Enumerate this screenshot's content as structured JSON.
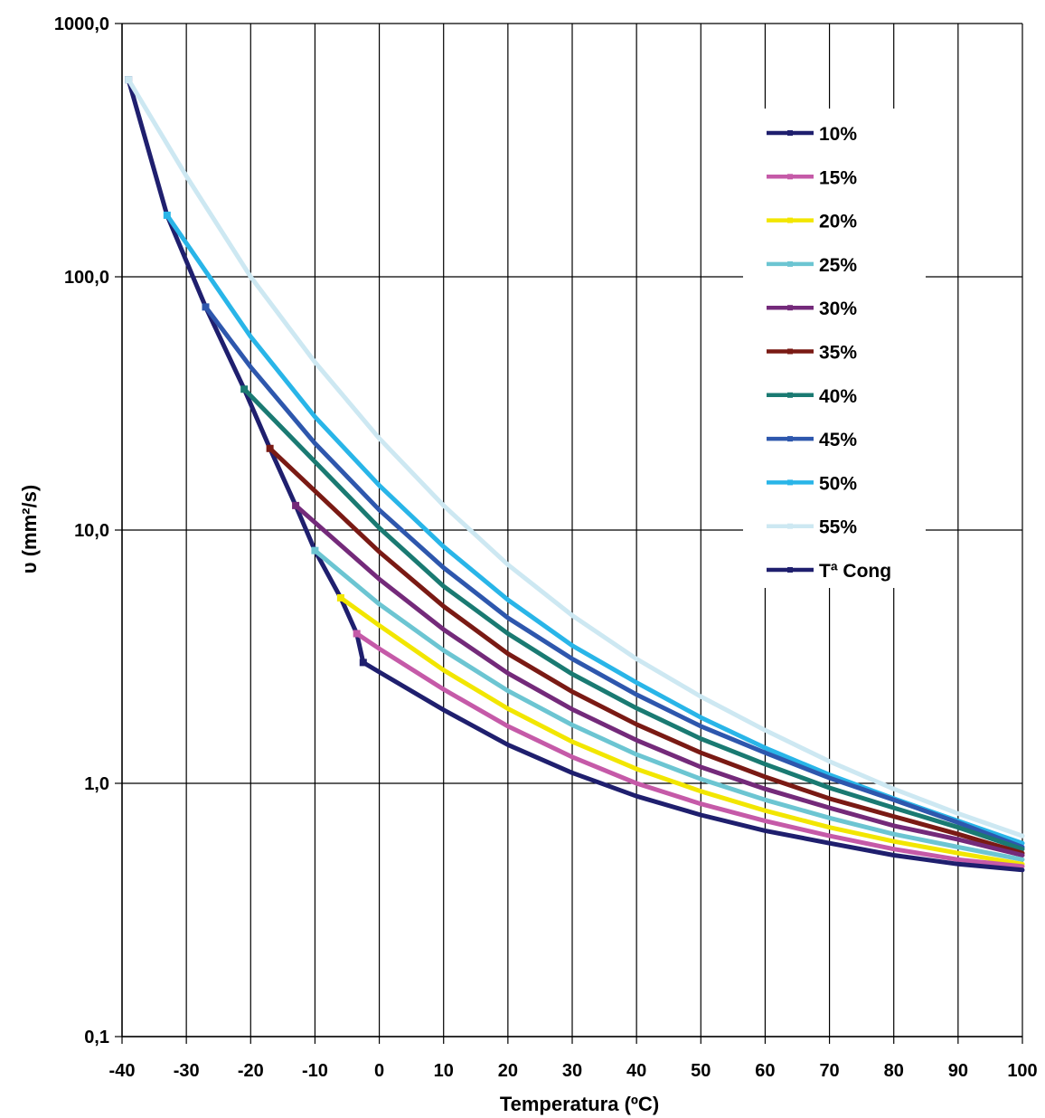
{
  "chart_data": {
    "type": "line",
    "title": "",
    "xlabel": "Temperatura (ºC)",
    "ylabel": "υ (mm²/s)",
    "xlim": [
      -40,
      100
    ],
    "ylim": [
      0.1,
      1000
    ],
    "yscale": "log",
    "grid": true,
    "legend_position": "right",
    "x_ticks": [
      "-40",
      "-30",
      "-20",
      "-10",
      "0",
      "10",
      "20",
      "30",
      "40",
      "50",
      "60",
      "70",
      "80",
      "90",
      "100"
    ],
    "y_ticks": [
      "0,1",
      "1,0",
      "10,0",
      "100,0",
      "1000,0"
    ],
    "series": [
      {
        "name": "10%",
        "color": "#1f1f6e",
        "x": [
          -2.5,
          0,
          10,
          20,
          30,
          40,
          50,
          60,
          70,
          80,
          90,
          100
        ],
        "y": [
          3.0,
          2.75,
          1.95,
          1.42,
          1.1,
          0.89,
          0.75,
          0.65,
          0.58,
          0.52,
          0.48,
          0.455
        ]
      },
      {
        "name": "15%",
        "color": "#c55aa8",
        "x": [
          -3.5,
          0,
          10,
          20,
          30,
          40,
          50,
          60,
          70,
          80,
          90,
          100
        ],
        "y": [
          3.9,
          3.4,
          2.35,
          1.68,
          1.27,
          1.0,
          0.83,
          0.71,
          0.62,
          0.55,
          0.5,
          0.47
        ]
      },
      {
        "name": "20%",
        "color": "#f2e600",
        "x": [
          -6,
          0,
          10,
          20,
          30,
          40,
          50,
          60,
          70,
          80,
          90,
          100
        ],
        "y": [
          5.4,
          4.2,
          2.8,
          1.97,
          1.46,
          1.14,
          0.93,
          0.78,
          0.67,
          0.59,
          0.53,
          0.48
        ]
      },
      {
        "name": "25%",
        "color": "#6cc5d2",
        "x": [
          -10,
          0,
          10,
          20,
          30,
          40,
          50,
          60,
          70,
          80,
          90,
          100
        ],
        "y": [
          8.3,
          5.1,
          3.35,
          2.32,
          1.7,
          1.3,
          1.04,
          0.86,
          0.73,
          0.63,
          0.56,
          0.5
        ]
      },
      {
        "name": "30%",
        "color": "#742a7a",
        "x": [
          -13,
          0,
          10,
          20,
          30,
          40,
          50,
          60,
          70,
          80,
          90,
          100
        ],
        "y": [
          12.5,
          6.4,
          4.05,
          2.72,
          1.96,
          1.48,
          1.16,
          0.95,
          0.8,
          0.68,
          0.6,
          0.52
        ]
      },
      {
        "name": "35%",
        "color": "#7a1a14",
        "x": [
          -17,
          0,
          10,
          20,
          30,
          40,
          50,
          60,
          70,
          80,
          90,
          100
        ],
        "y": [
          21,
          8.2,
          5.0,
          3.25,
          2.3,
          1.71,
          1.32,
          1.06,
          0.87,
          0.74,
          0.63,
          0.53
        ]
      },
      {
        "name": "40%",
        "color": "#1a7a72",
        "x": [
          -21,
          0,
          10,
          20,
          30,
          40,
          50,
          60,
          70,
          80,
          90,
          100
        ],
        "y": [
          36,
          10.2,
          6.0,
          3.9,
          2.7,
          1.98,
          1.5,
          1.19,
          0.96,
          0.8,
          0.67,
          0.55
        ]
      },
      {
        "name": "45%",
        "color": "#2e57ad",
        "x": [
          -27,
          -20,
          -10,
          0,
          10,
          20,
          30,
          40,
          50,
          60,
          70,
          80,
          90,
          100
        ],
        "y": [
          76,
          44,
          22,
          12.0,
          7.1,
          4.5,
          3.1,
          2.24,
          1.68,
          1.32,
          1.05,
          0.86,
          0.7,
          0.56
        ]
      },
      {
        "name": "50%",
        "color": "#29b5e8",
        "x": [
          -33,
          -20,
          -10,
          0,
          10,
          20,
          30,
          40,
          50,
          60,
          70,
          80,
          90,
          100
        ],
        "y": [
          175,
          58,
          28,
          15.0,
          8.6,
          5.3,
          3.5,
          2.5,
          1.82,
          1.38,
          1.08,
          0.87,
          0.71,
          0.58
        ]
      },
      {
        "name": "55%",
        "color": "#cde8f2",
        "x": [
          -39,
          -30,
          -20,
          -10,
          0,
          10,
          20,
          30,
          40,
          50,
          60,
          70,
          80,
          90,
          100
        ],
        "y": [
          600,
          250,
          100,
          46,
          23,
          12.5,
          7.3,
          4.6,
          3.1,
          2.2,
          1.62,
          1.22,
          0.95,
          0.76,
          0.62
        ]
      },
      {
        "name": "Tª Cong",
        "color": "#1f1f6e",
        "x": [
          -39,
          -33,
          -27,
          -21,
          -17,
          -13,
          -10,
          -6,
          -3.5,
          -2.5
        ],
        "y": [
          600,
          175,
          76,
          36,
          21,
          12.5,
          8.3,
          5.4,
          3.9,
          3.0
        ]
      }
    ]
  }
}
